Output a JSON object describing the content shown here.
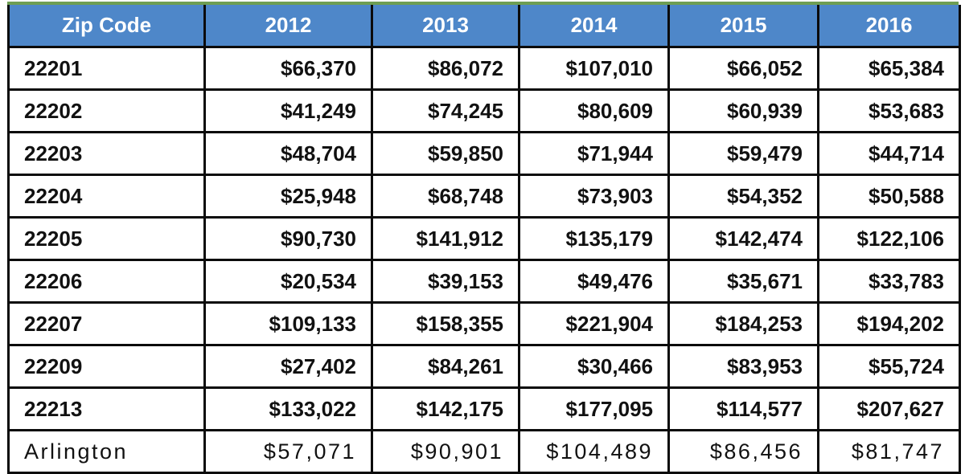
{
  "table": {
    "columns": [
      "Zip Code",
      "2012",
      "2013",
      "2014",
      "2015",
      "2016"
    ],
    "rows": [
      {
        "label": "22201",
        "cells": [
          "$66,370",
          "$86,072",
          "$107,010",
          "$66,052",
          "$65,384"
        ]
      },
      {
        "label": "22202",
        "cells": [
          "$41,249",
          "$74,245",
          "$80,609",
          "$60,939",
          "$53,683"
        ]
      },
      {
        "label": "22203",
        "cells": [
          "$48,704",
          "$59,850",
          "$71,944",
          "$59,479",
          "$44,714"
        ]
      },
      {
        "label": "22204",
        "cells": [
          "$25,948",
          "$68,748",
          "$73,903",
          "$54,352",
          "$50,588"
        ]
      },
      {
        "label": "22205",
        "cells": [
          "$90,730",
          "$141,912",
          "$135,179",
          "$142,474",
          "$122,106"
        ]
      },
      {
        "label": "22206",
        "cells": [
          "$20,534",
          "$39,153",
          "$49,476",
          "$35,671",
          "$33,783"
        ]
      },
      {
        "label": "22207",
        "cells": [
          "$109,133",
          "$158,355",
          "$221,904",
          "$184,253",
          "$194,202"
        ]
      },
      {
        "label": "22209",
        "cells": [
          "$27,402",
          "$84,261",
          "$30,466",
          "$83,953",
          "$55,724"
        ]
      },
      {
        "label": "22213",
        "cells": [
          "$133,022",
          "$142,175",
          "$177,095",
          "$114,577",
          "$207,627"
        ]
      },
      {
        "label": "Arlington",
        "cells": [
          "$57,071",
          "$90,901",
          "$104,489",
          "$86,456",
          "$81,747"
        ]
      }
    ]
  },
  "chart_data": {
    "type": "table",
    "title": "",
    "columns": [
      "Zip Code",
      "2012",
      "2013",
      "2014",
      "2015",
      "2016"
    ],
    "rows": [
      {
        "zip_code": "22201",
        "values": [
          66370,
          86072,
          107010,
          66052,
          65384
        ]
      },
      {
        "zip_code": "22202",
        "values": [
          41249,
          74245,
          80609,
          60939,
          53683
        ]
      },
      {
        "zip_code": "22203",
        "values": [
          48704,
          59850,
          71944,
          59479,
          44714
        ]
      },
      {
        "zip_code": "22204",
        "values": [
          25948,
          68748,
          73903,
          54352,
          50588
        ]
      },
      {
        "zip_code": "22205",
        "values": [
          90730,
          141912,
          135179,
          142474,
          122106
        ]
      },
      {
        "zip_code": "22206",
        "values": [
          20534,
          39153,
          49476,
          35671,
          33783
        ]
      },
      {
        "zip_code": "22207",
        "values": [
          109133,
          158355,
          221904,
          184253,
          194202
        ]
      },
      {
        "zip_code": "22209",
        "values": [
          27402,
          84261,
          30466,
          83953,
          55724
        ]
      },
      {
        "zip_code": "22213",
        "values": [
          133022,
          142175,
          177095,
          114577,
          207627
        ]
      },
      {
        "zip_code": "Arlington",
        "values": [
          57071,
          90901,
          104489,
          86456,
          81747
        ]
      }
    ],
    "value_format": "USD, comma-separated, no decimals"
  },
  "colors": {
    "header_bg": "#4e87c9",
    "header_text": "#ffffff",
    "cell_text": "#111111",
    "border": "#0b0b0b",
    "top_accent_line": "#6e9e53"
  }
}
